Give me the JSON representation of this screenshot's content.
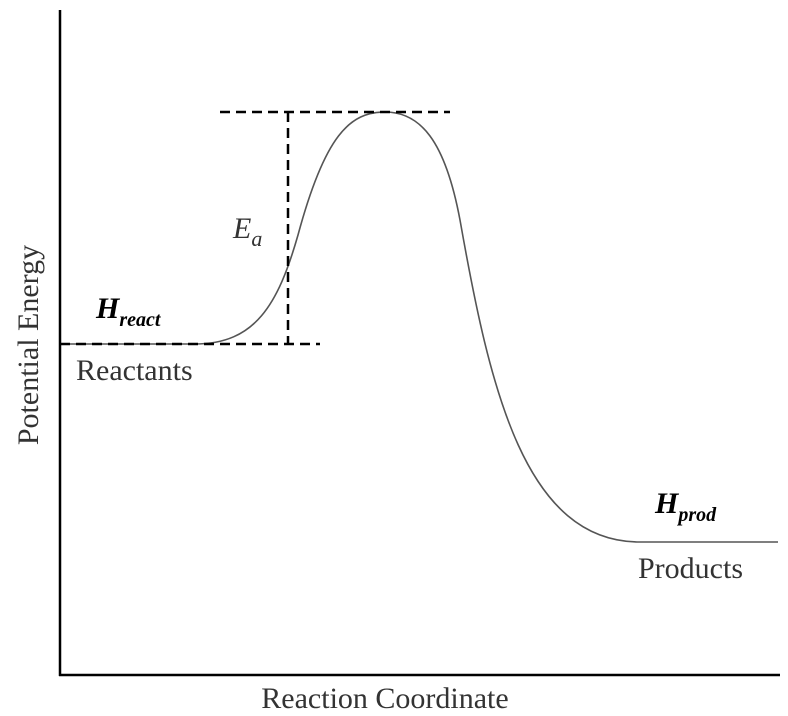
{
  "axes": {
    "y_label": "Potential Energy",
    "x_label": "Reaction Coordinate"
  },
  "labels": {
    "reactants": "Reactants",
    "products": "Products",
    "activation_energy": {
      "main": "E",
      "sub": "a"
    },
    "h_react": {
      "main": "H",
      "sub": "react"
    },
    "h_prod": {
      "main": "H",
      "sub": "prod"
    }
  }
}
